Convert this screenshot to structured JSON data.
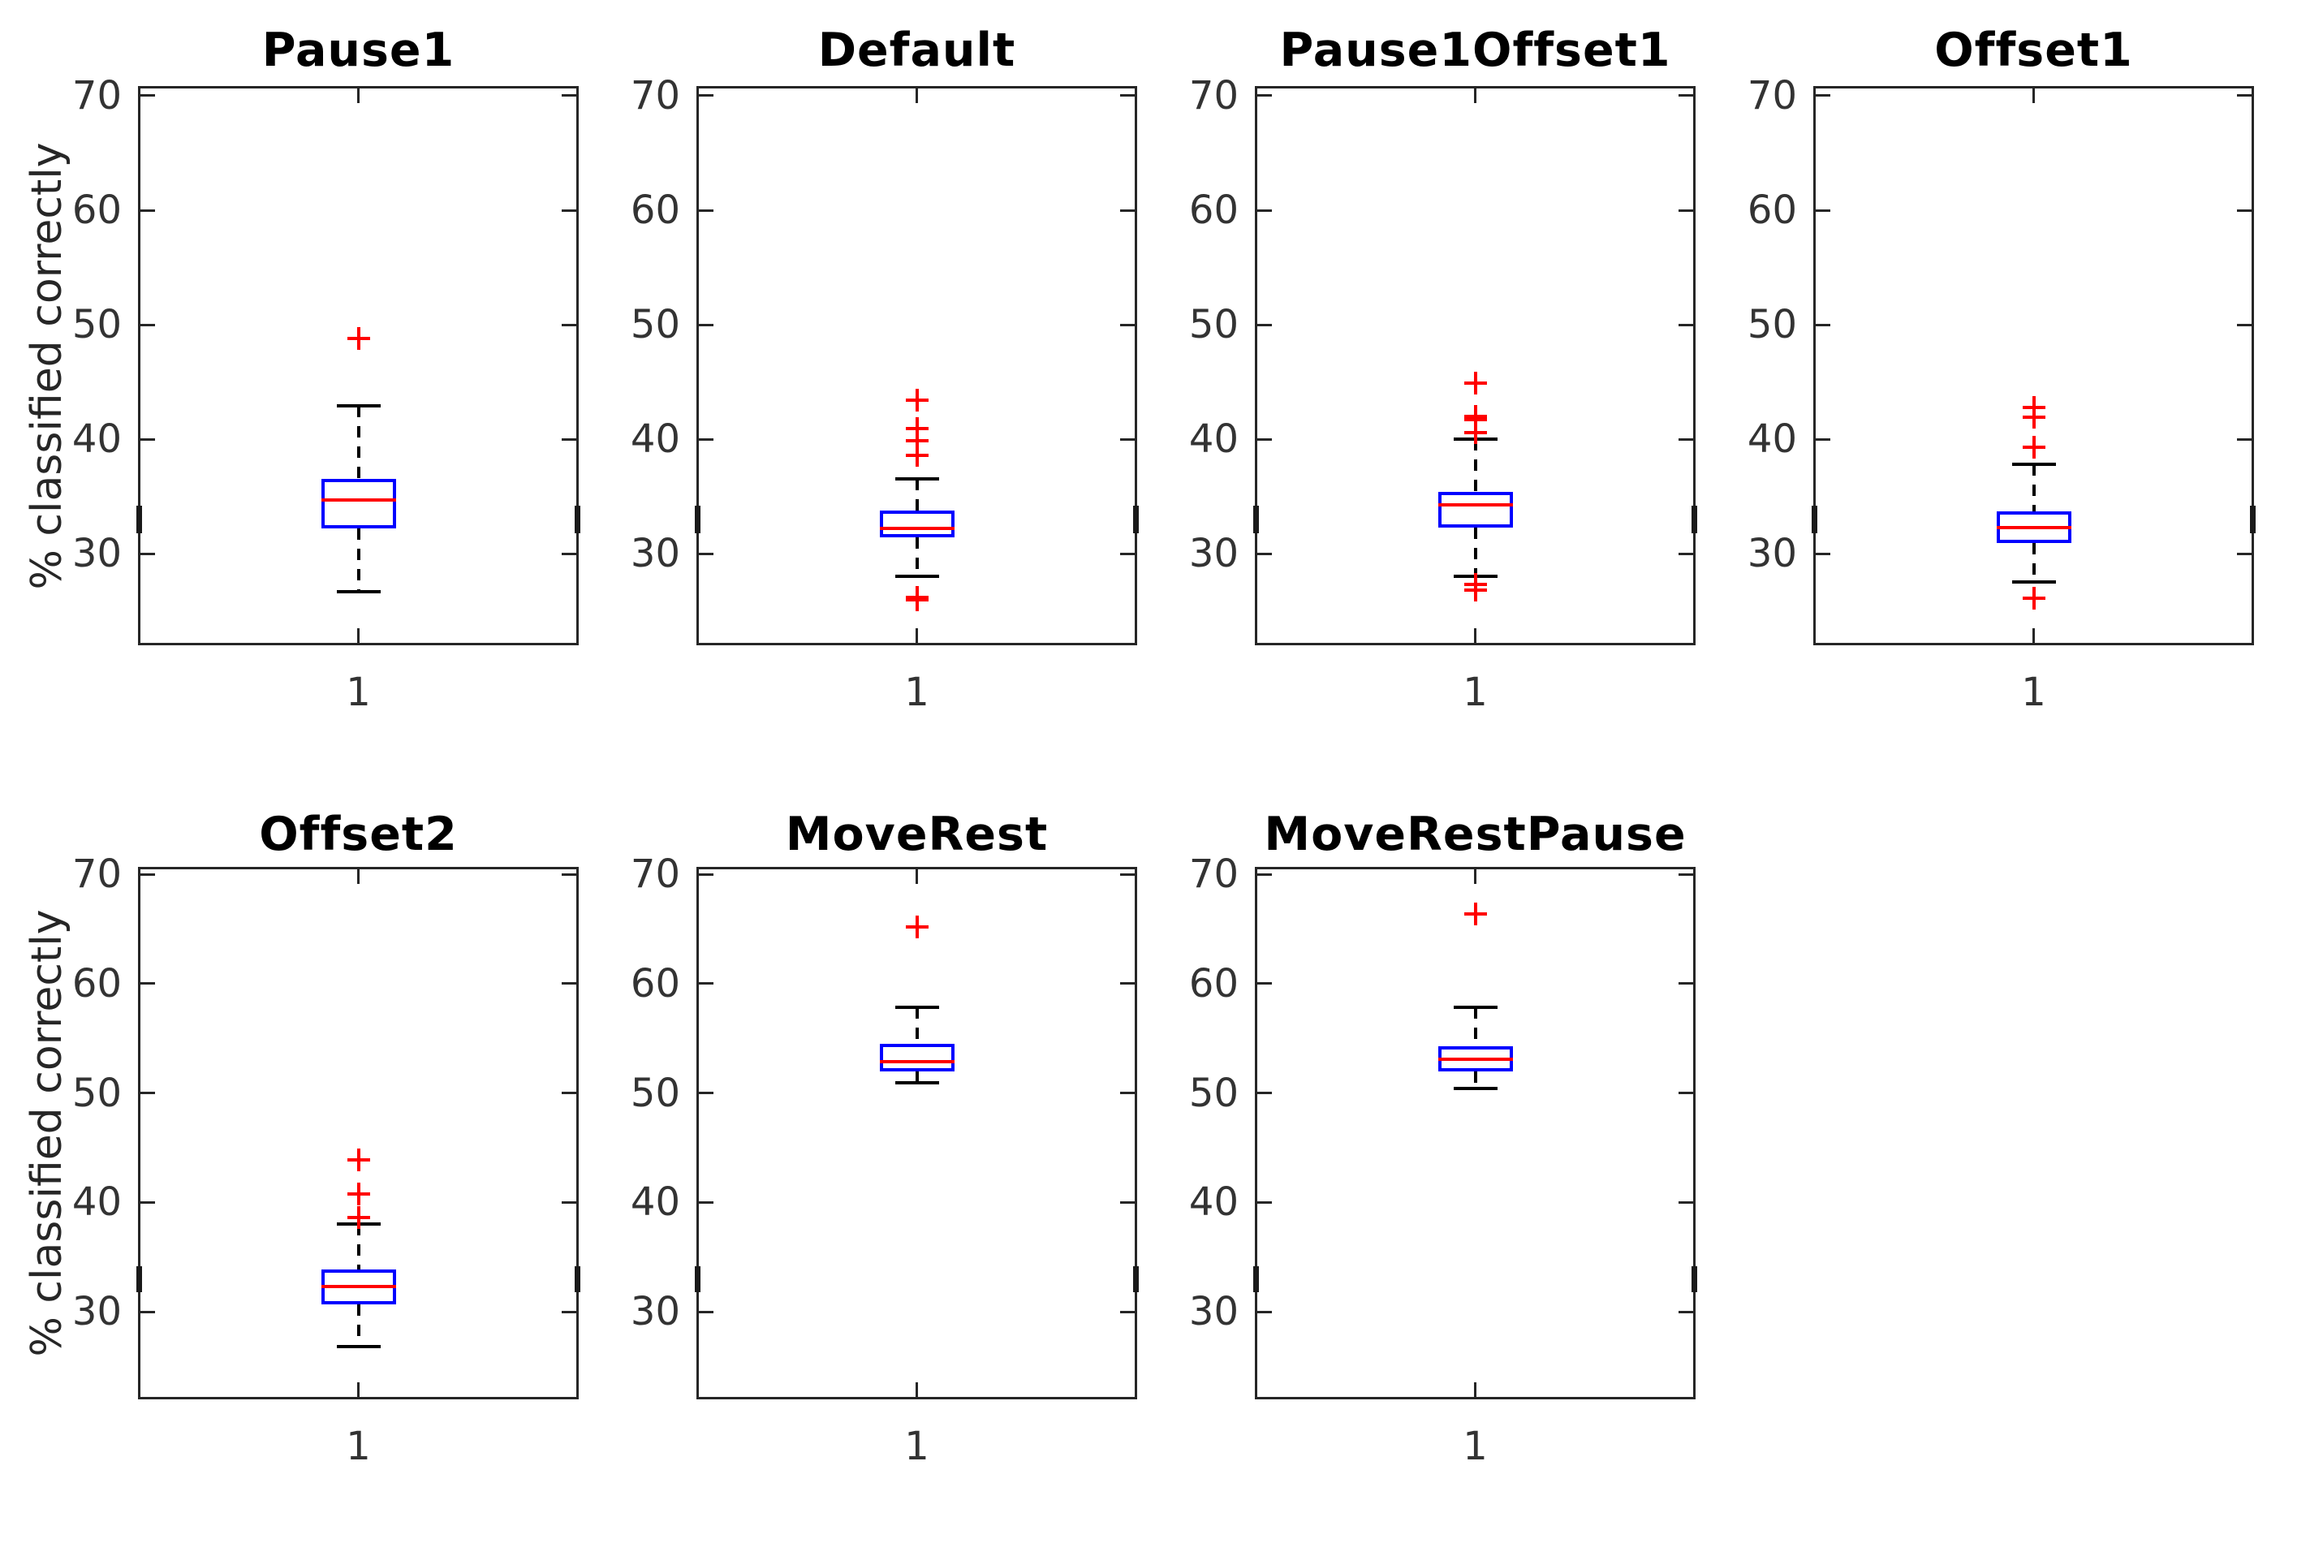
{
  "figure": {
    "background": "#ffffff"
  },
  "chart_data": {
    "type": "box",
    "ylabel": "% classified correctly",
    "xtick_label": "1",
    "yticks": [
      30,
      40,
      50,
      60,
      70
    ],
    "rows": [
      {
        "ylim": [
          22.0,
          70.85
        ]
      },
      {
        "ylim": [
          22.0,
          70.67
        ]
      }
    ],
    "panels": [
      {
        "title": "Pause1",
        "row": 0,
        "col": 0,
        "stats": {
          "q1": 32.2,
          "median": 34.7,
          "q3": 36.5,
          "whisker_low": 26.7,
          "whisker_high": 42.9
        },
        "outliers": [
          48.8
        ]
      },
      {
        "title": "Default",
        "row": 0,
        "col": 1,
        "stats": {
          "q1": 31.4,
          "median": 32.2,
          "q3": 33.8,
          "whisker_low": 28.0,
          "whisker_high": 36.5
        },
        "outliers": [
          43.4,
          40.9,
          39.9,
          38.6,
          26.2,
          26.0
        ]
      },
      {
        "title": "Pause1Offset1",
        "row": 0,
        "col": 2,
        "stats": {
          "q1": 32.3,
          "median": 34.3,
          "q3": 35.4,
          "whisker_low": 28.0,
          "whisker_high": 40.0
        },
        "outliers": [
          44.9,
          42.0,
          41.7,
          40.6,
          27.3,
          26.8
        ]
      },
      {
        "title": "Offset1",
        "row": 0,
        "col": 3,
        "stats": {
          "q1": 30.9,
          "median": 32.3,
          "q3": 33.7,
          "whisker_low": 27.5,
          "whisker_high": 37.8
        },
        "outliers": [
          42.8,
          41.9,
          39.3,
          26.1
        ]
      },
      {
        "title": "Offset2",
        "row": 1,
        "col": 0,
        "stats": {
          "q1": 30.7,
          "median": 32.3,
          "q3": 33.9,
          "whisker_low": 26.8,
          "whisker_high": 38.0
        },
        "outliers": [
          43.9,
          40.8,
          38.6
        ]
      },
      {
        "title": "MoveRest",
        "row": 1,
        "col": 1,
        "stats": {
          "q1": 52.0,
          "median": 52.9,
          "q3": 54.5,
          "whisker_low": 50.9,
          "whisker_high": 57.8
        },
        "outliers": [
          65.2
        ]
      },
      {
        "title": "MoveRestPause",
        "row": 1,
        "col": 2,
        "stats": {
          "q1": 52.0,
          "median": 53.1,
          "q3": 54.3,
          "whisker_low": 50.4,
          "whisker_high": 57.8
        },
        "outliers": [
          66.4
        ]
      }
    ],
    "edge_mark_range": [
      31.8,
      34.2
    ],
    "colors": {
      "box": "#0000ff",
      "median": "#ff0000",
      "outlier": "#ff0000",
      "whisker": "#000000",
      "axis": "#262626",
      "tick_label": "#333333",
      "title": "#000000"
    }
  }
}
